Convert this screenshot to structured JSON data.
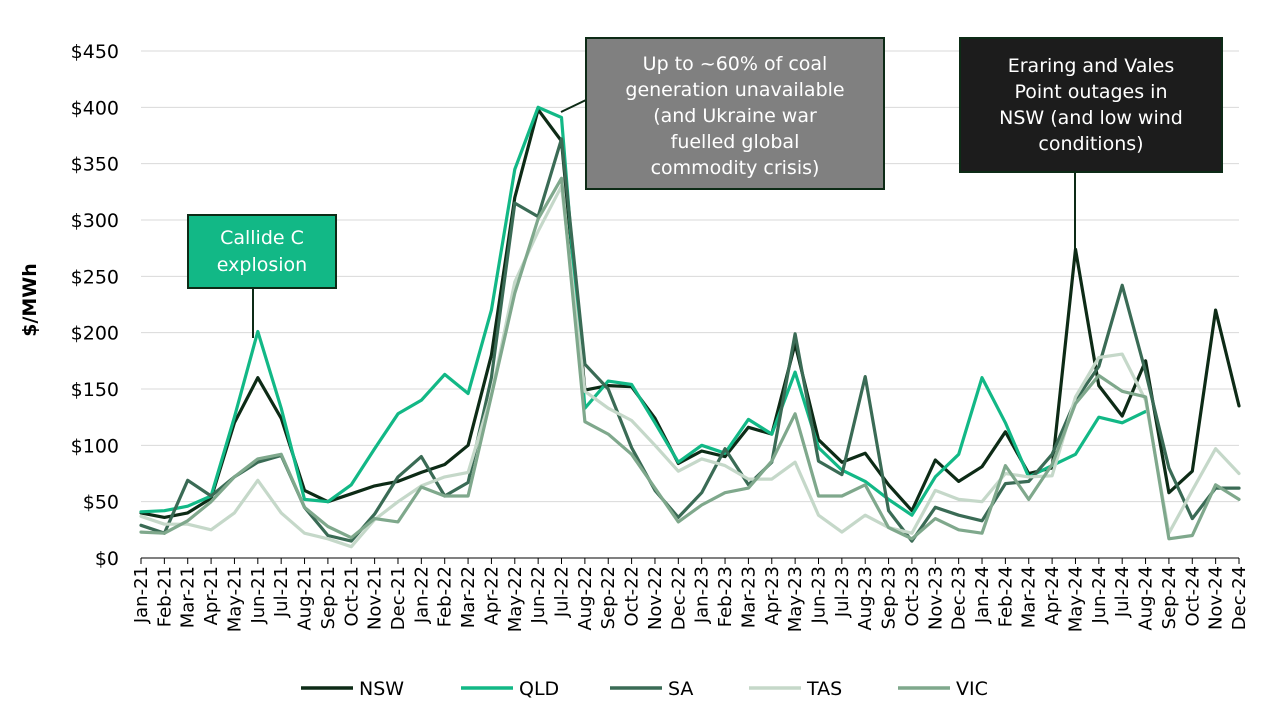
{
  "chart_data": {
    "type": "line",
    "ylabel": "$/MWh",
    "xlabel": "",
    "ylim": [
      0,
      450
    ],
    "yticks": [
      0,
      50,
      100,
      150,
      200,
      250,
      300,
      350,
      400,
      450
    ],
    "ytick_labels": [
      "$0",
      "$50",
      "$100",
      "$150",
      "$200",
      "$250",
      "$300",
      "$350",
      "$400",
      "$450"
    ],
    "grid": true,
    "legend_position": "bottom",
    "categories": [
      "Jan-21",
      "Feb-21",
      "Mar-21",
      "Apr-21",
      "May-21",
      "Jun-21",
      "Jul-21",
      "Aug-21",
      "Sep-21",
      "Oct-21",
      "Nov-21",
      "Dec-21",
      "Jan-22",
      "Feb-22",
      "Mar-22",
      "Apr-22",
      "May-22",
      "Jun-22",
      "Jul-22",
      "Aug-22",
      "Sep-22",
      "Oct-22",
      "Nov-22",
      "Dec-22",
      "Jan-23",
      "Feb-23",
      "Mar-23",
      "Apr-23",
      "May-23",
      "Jun-23",
      "Jul-23",
      "Aug-23",
      "Sep-23",
      "Oct-23",
      "Nov-23",
      "Dec-23",
      "Jan-24",
      "Feb-24",
      "Mar-24",
      "Apr-24",
      "May-24",
      "Jun-24",
      "Jul-24",
      "Aug-24",
      "Sep-24",
      "Oct-24",
      "Nov-24",
      "Dec-24"
    ],
    "series": [
      {
        "name": "NSW",
        "color": "#0d2b16",
        "values": [
          40,
          36,
          40,
          53,
          120,
          160,
          124,
          60,
          50,
          57,
          64,
          68,
          76,
          83,
          100,
          180,
          320,
          398,
          370,
          149,
          153,
          152,
          124,
          84,
          95,
          90,
          116,
          110,
          190,
          105,
          85,
          93,
          65,
          42,
          87,
          68,
          81,
          112,
          75,
          80,
          274,
          153,
          126,
          175,
          58,
          77,
          220,
          135
        ]
      },
      {
        "name": "QLD",
        "color": "#12b886",
        "values": [
          41,
          42,
          46,
          55,
          125,
          201,
          133,
          52,
          50,
          65,
          97,
          128,
          140,
          163,
          146,
          220,
          345,
          400,
          391,
          133,
          157,
          154,
          120,
          85,
          100,
          93,
          123,
          110,
          165,
          98,
          78,
          68,
          52,
          38,
          72,
          92,
          160,
          120,
          72,
          82,
          92,
          125,
          120,
          130,
          null,
          null,
          null,
          null
        ]
      },
      {
        "name": "SA",
        "color": "#3a6b55",
        "values": [
          29,
          22,
          69,
          55,
          72,
          85,
          91,
          45,
          20,
          15,
          39,
          72,
          90,
          55,
          67,
          160,
          315,
          303,
          372,
          172,
          150,
          98,
          60,
          36,
          58,
          97,
          65,
          85,
          199,
          86,
          74,
          161,
          42,
          15,
          45,
          38,
          33,
          66,
          68,
          92,
          140,
          170,
          242,
          165,
          80,
          35,
          62,
          62
        ]
      },
      {
        "name": "TAS",
        "color": "#c5d8c9",
        "values": [
          37,
          30,
          30,
          25,
          40,
          69,
          40,
          22,
          17,
          10,
          34,
          50,
          64,
          72,
          76,
          145,
          245,
          290,
          330,
          148,
          133,
          122,
          100,
          77,
          88,
          82,
          70,
          70,
          85,
          38,
          23,
          38,
          27,
          22,
          60,
          52,
          50,
          75,
          72,
          73,
          143,
          178,
          181,
          140,
          22,
          60,
          97,
          75
        ]
      },
      {
        "name": "VIC",
        "color": "#7fa88c",
        "values": [
          23,
          22,
          33,
          50,
          72,
          88,
          92,
          45,
          28,
          18,
          35,
          32,
          63,
          55,
          55,
          144,
          235,
          301,
          337,
          121,
          110,
          92,
          62,
          32,
          47,
          58,
          62,
          86,
          128,
          55,
          55,
          65,
          27,
          17,
          35,
          25,
          22,
          82,
          52,
          83,
          137,
          162,
          148,
          143,
          17,
          20,
          65,
          52
        ]
      }
    ],
    "annotations": [
      {
        "text": "Callide C explosion",
        "lines": [
          "Callide C",
          "explosion"
        ],
        "bg": "#12b886",
        "fg": "#ffffff",
        "border": "#0d2b16",
        "category": "Jun-21",
        "value": 201
      },
      {
        "text": "Up to ~60% of coal generation unavailable (and Ukraine war fuelled global commodity crisis)",
        "lines": [
          "Up to ~60% of coal",
          "generation unavailable",
          "(and Ukraine war",
          "fuelled global",
          "commodity crisis)"
        ],
        "bg": "#808080",
        "fg": "#ffffff",
        "border": "#0d2b16",
        "category": "Jul-22",
        "value": 391
      },
      {
        "text": "Eraring and Vales Point outages in NSW (and low wind conditions)",
        "lines": [
          "Eraring and Vales",
          "Point outages in",
          "NSW (and low wind",
          "conditions)"
        ],
        "bg": "#1c1c1c",
        "fg": "#ffffff",
        "border": "#0d2b16",
        "category": "May-24",
        "value": 274
      }
    ]
  }
}
